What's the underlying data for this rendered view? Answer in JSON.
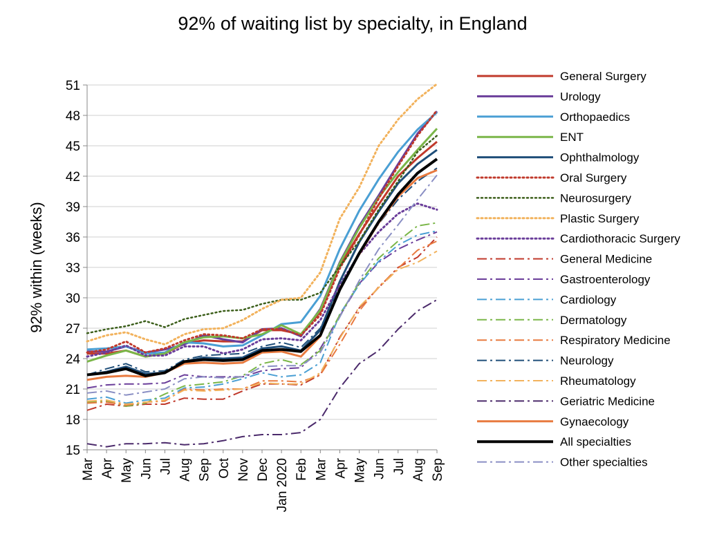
{
  "chart_data": {
    "type": "line",
    "title": "92% of waiting list by specialty, in England",
    "ylabel": "92% within  (weeks)",
    "xlabel": "",
    "ylim": [
      15,
      51
    ],
    "yticks": [
      15,
      18,
      21,
      24,
      27,
      30,
      33,
      36,
      39,
      42,
      45,
      48,
      51
    ],
    "grid": "horizontal",
    "legend_position": "right",
    "categories": [
      "Mar",
      "Apr",
      "May",
      "Jun",
      "Jul",
      "Aug",
      "Sep",
      "Oct",
      "Nov",
      "Dec",
      "Jan 2020",
      "Feb",
      "Mar",
      "Apr",
      "May",
      "Jun",
      "Jul",
      "Aug",
      "Sep"
    ],
    "series": [
      {
        "name": "General Surgery",
        "color": "#c0392b",
        "dash": "solid",
        "width": 3,
        "values": [
          24.5,
          24.5,
          24.8,
          24.2,
          24.5,
          25.5,
          25.8,
          25.7,
          25.7,
          26.8,
          26.8,
          26.4,
          28.6,
          33.2,
          36.3,
          39.2,
          42.0,
          43.8,
          45.4
        ]
      },
      {
        "name": "Urology",
        "color": "#6a3d9a",
        "dash": "solid",
        "width": 3,
        "values": [
          24.7,
          24.7,
          25.2,
          24.6,
          24.9,
          25.4,
          26.3,
          25.9,
          25.6,
          26.9,
          27.0,
          26.2,
          28.9,
          33.5,
          37.1,
          40.1,
          43.2,
          46.2,
          48.4
        ]
      },
      {
        "name": "Orthopaedics",
        "color": "#4a9fd4",
        "dash": "solid",
        "width": 3,
        "values": [
          24.9,
          25.0,
          25.2,
          24.5,
          24.6,
          25.6,
          25.5,
          25.2,
          25.3,
          26.3,
          27.4,
          27.6,
          30.2,
          34.8,
          38.6,
          41.7,
          44.4,
          46.6,
          48.3
        ]
      },
      {
        "name": "ENT",
        "color": "#7ab648",
        "dash": "solid",
        "width": 3,
        "values": [
          23.7,
          24.3,
          24.8,
          24.2,
          24.5,
          25.6,
          26.1,
          26.2,
          26.0,
          26.4,
          27.3,
          26.4,
          28.8,
          33.4,
          36.9,
          39.9,
          42.4,
          44.6,
          46.7
        ]
      },
      {
        "name": "Ophthalmology",
        "color": "#1f4e79",
        "dash": "solid",
        "width": 3,
        "values": [
          22.4,
          22.7,
          23.2,
          22.5,
          22.6,
          23.7,
          24.1,
          24.0,
          24.1,
          25.0,
          25.2,
          24.8,
          26.8,
          31.6,
          35.5,
          38.5,
          41.3,
          43.2,
          44.6
        ]
      },
      {
        "name": "Oral Surgery",
        "color": "#c0392b",
        "dash": "dot",
        "width": 3,
        "values": [
          24.6,
          24.9,
          25.7,
          24.6,
          25.0,
          25.8,
          26.4,
          26.3,
          26.0,
          26.9,
          26.9,
          26.3,
          28.3,
          32.9,
          36.2,
          39.8,
          43.0,
          46.0,
          48.5
        ]
      },
      {
        "name": "Neurosurgery",
        "color": "#3b5e1a",
        "dash": "dot",
        "width": 2.5,
        "values": [
          26.5,
          26.9,
          27.2,
          27.7,
          27.1,
          27.9,
          28.3,
          28.7,
          28.8,
          29.4,
          29.8,
          29.8,
          30.5,
          33.1,
          35.6,
          38.7,
          41.5,
          44.4,
          46.0
        ]
      },
      {
        "name": "Plastic Surgery",
        "color": "#f2b25c",
        "dash": "dot",
        "width": 3,
        "values": [
          25.7,
          26.3,
          26.6,
          25.9,
          25.4,
          26.4,
          26.9,
          27.0,
          27.8,
          28.9,
          29.8,
          30.0,
          32.5,
          37.8,
          40.9,
          45.0,
          47.6,
          49.6,
          51.1
        ]
      },
      {
        "name": "Cardiothoracic Surgery",
        "color": "#6a3d9a",
        "dash": "dot",
        "width": 3,
        "values": [
          24.2,
          24.6,
          25.3,
          24.3,
          24.3,
          25.2,
          25.2,
          24.5,
          24.9,
          25.9,
          26.0,
          25.8,
          27.8,
          31.3,
          34.3,
          36.5,
          38.3,
          39.3,
          38.7
        ]
      },
      {
        "name": "General Medicine",
        "color": "#c0392b",
        "dash": "dashdot",
        "width": 2,
        "values": [
          18.9,
          19.5,
          19.3,
          19.5,
          19.5,
          20.1,
          20.0,
          20.0,
          20.8,
          21.5,
          21.5,
          21.4,
          22.4,
          26.1,
          29.0,
          31.0,
          33.0,
          34.0,
          36.0
        ]
      },
      {
        "name": "Gastroenterology",
        "color": "#6a3d9a",
        "dash": "dashdot",
        "width": 2,
        "values": [
          21.1,
          21.4,
          21.5,
          21.5,
          21.6,
          22.4,
          22.2,
          22.2,
          22.2,
          22.8,
          23.0,
          23.1,
          25.0,
          28.2,
          31.4,
          33.5,
          34.8,
          35.7,
          36.5
        ]
      },
      {
        "name": "Cardiology",
        "color": "#4a9fd4",
        "dash": "dashdot",
        "width": 2,
        "values": [
          20.0,
          20.2,
          19.6,
          19.9,
          20.1,
          21.1,
          21.2,
          21.5,
          22.0,
          22.6,
          22.2,
          22.4,
          23.6,
          28.4,
          31.3,
          33.6,
          35.2,
          36.2,
          36.6
        ]
      },
      {
        "name": "Dermatology",
        "color": "#7ab648",
        "dash": "dashdot",
        "width": 2,
        "values": [
          19.7,
          19.8,
          19.3,
          19.6,
          20.5,
          21.3,
          21.5,
          21.7,
          22.3,
          23.5,
          23.9,
          23.4,
          24.8,
          28.3,
          31.5,
          33.9,
          35.6,
          37.1,
          37.4
        ]
      },
      {
        "name": "Respiratory Medicine",
        "color": "#e87a3f",
        "dash": "dashdot",
        "width": 2,
        "values": [
          19.6,
          19.7,
          19.4,
          19.7,
          19.8,
          21.0,
          20.9,
          21.0,
          21.0,
          21.8,
          21.8,
          21.7,
          22.4,
          25.4,
          28.7,
          31.1,
          32.9,
          34.7,
          35.6
        ]
      },
      {
        "name": "Neurology",
        "color": "#1f4e79",
        "dash": "dashdot",
        "width": 2,
        "values": [
          22.4,
          23.0,
          23.5,
          22.7,
          22.8,
          23.9,
          24.3,
          24.4,
          24.5,
          25.2,
          25.6,
          25.1,
          27.0,
          31.1,
          34.5,
          37.3,
          39.7,
          41.5,
          42.8
        ]
      },
      {
        "name": "Rheumatology",
        "color": "#f2b25c",
        "dash": "dashdot",
        "width": 2,
        "values": [
          19.8,
          19.9,
          19.5,
          19.7,
          19.9,
          20.9,
          20.8,
          20.9,
          21.0,
          21.6,
          21.5,
          21.5,
          22.6,
          26.0,
          29.1,
          31.0,
          32.8,
          33.5,
          34.6
        ]
      },
      {
        "name": "Geriatric Medicine",
        "color": "#4b2a6b",
        "dash": "dashdot",
        "width": 2,
        "values": [
          15.6,
          15.3,
          15.6,
          15.6,
          15.7,
          15.5,
          15.6,
          15.9,
          16.3,
          16.5,
          16.5,
          16.7,
          18.0,
          21.1,
          23.5,
          24.8,
          26.9,
          28.7,
          29.8
        ]
      },
      {
        "name": "Gynaecology",
        "color": "#e87a3f",
        "dash": "solid",
        "width": 3,
        "values": [
          21.9,
          22.2,
          22.3,
          22.2,
          22.6,
          23.5,
          23.6,
          23.5,
          23.6,
          24.6,
          24.7,
          24.2,
          26.2,
          30.9,
          34.3,
          37.4,
          40.0,
          41.8,
          42.6
        ]
      },
      {
        "name": "All specialties",
        "color": "#000000",
        "dash": "solid",
        "width": 4,
        "values": [
          22.4,
          22.6,
          23.0,
          22.3,
          22.6,
          23.7,
          23.9,
          23.8,
          23.9,
          24.8,
          24.9,
          24.7,
          26.3,
          30.8,
          34.4,
          37.5,
          40.2,
          42.3,
          43.7
        ]
      },
      {
        "name": "Other specialties",
        "color": "#8a8fc4",
        "dash": "dashdot",
        "width": 2,
        "values": [
          20.6,
          20.8,
          20.4,
          20.7,
          21.0,
          22.0,
          22.2,
          22.1,
          22.2,
          23.2,
          23.3,
          23.3,
          24.6,
          28.1,
          31.7,
          34.8,
          37.2,
          39.7,
          42.1
        ]
      }
    ]
  }
}
